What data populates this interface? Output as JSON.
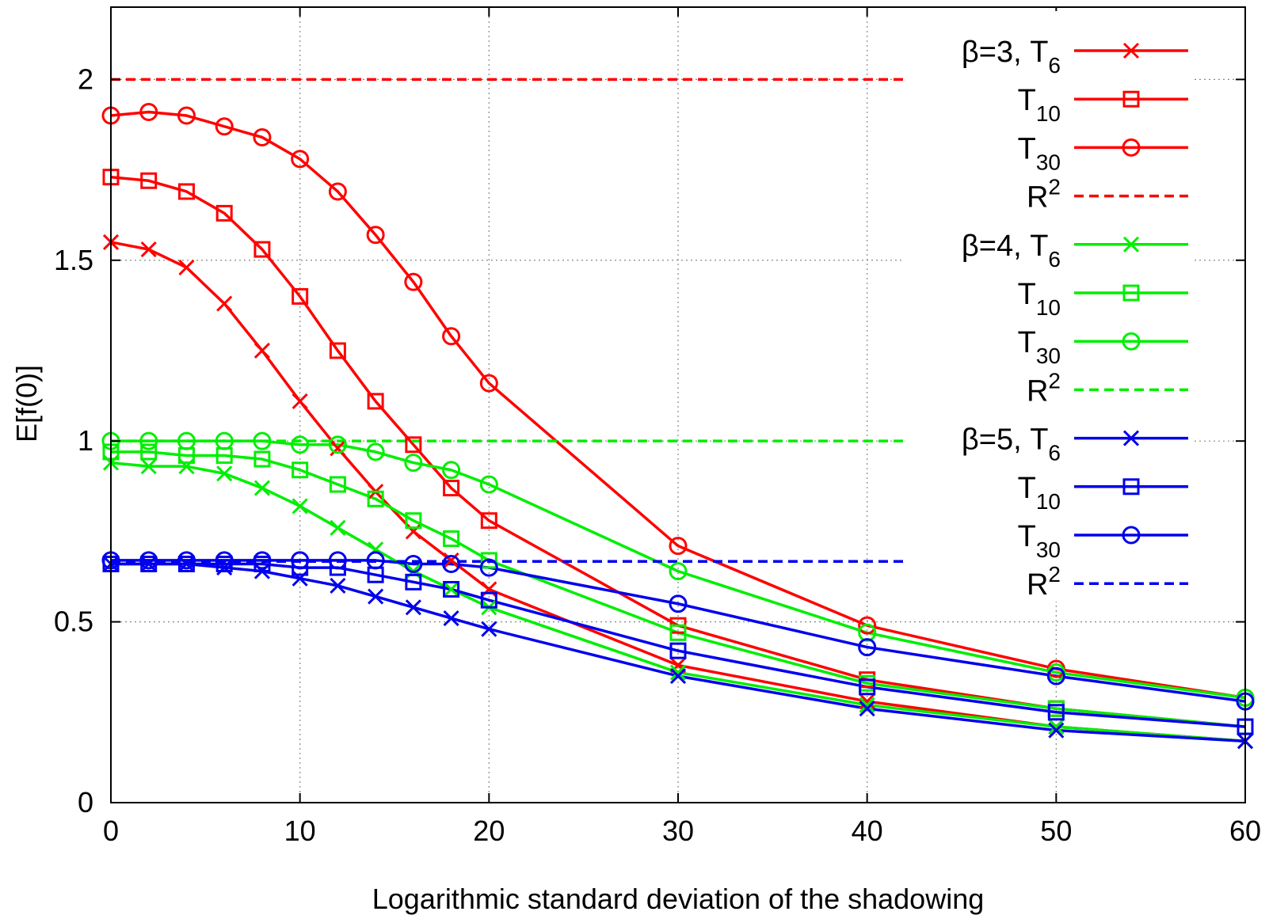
{
  "chart_data": {
    "type": "line",
    "title": "",
    "xlabel": "Logarithmic standard deviation of the shadowing",
    "ylabel": "E[f(0)]",
    "xlim": [
      0,
      60
    ],
    "ylim": [
      0,
      2.2
    ],
    "xticks": [
      "0",
      "10",
      "20",
      "30",
      "40",
      "50",
      "60"
    ],
    "yticks": [
      "0",
      "0.5",
      "1",
      "1.5",
      "2"
    ],
    "grid": "on (dotted)",
    "legend_position": "right",
    "x": [
      0,
      2,
      4,
      6,
      8,
      10,
      12,
      14,
      16,
      18,
      20,
      30,
      40,
      50,
      60
    ],
    "series": [
      {
        "label_main": "β=3, T",
        "label_sub": "6",
        "color": "#ff0000",
        "marker": "x",
        "style": "solid",
        "values": [
          1.55,
          1.53,
          1.48,
          1.38,
          1.25,
          1.11,
          0.98,
          0.86,
          0.75,
          0.67,
          0.59,
          0.38,
          0.28,
          0.21,
          0.17
        ]
      },
      {
        "label_main": "T",
        "label_sub": "10",
        "color": "#ff0000",
        "marker": "square",
        "style": "solid",
        "values": [
          1.73,
          1.72,
          1.69,
          1.63,
          1.53,
          1.4,
          1.25,
          1.11,
          0.99,
          0.87,
          0.78,
          0.49,
          0.34,
          0.26,
          0.21
        ]
      },
      {
        "label_main": "T",
        "label_sub": "30",
        "color": "#ff0000",
        "marker": "circle",
        "style": "solid",
        "values": [
          1.9,
          1.91,
          1.9,
          1.87,
          1.84,
          1.78,
          1.69,
          1.57,
          1.44,
          1.29,
          1.16,
          0.71,
          0.49,
          0.37,
          0.29
        ]
      },
      {
        "label_main": "R",
        "label_sup": "2",
        "color": "#ff0000",
        "marker": "none",
        "style": "dashed",
        "x_range": [
          0,
          42
        ],
        "constant": 2.0
      },
      {
        "label_main": "β=4, T",
        "label_sub": "6",
        "color": "#00ee00",
        "marker": "x",
        "style": "solid",
        "values": [
          0.94,
          0.93,
          0.93,
          0.91,
          0.87,
          0.82,
          0.76,
          0.7,
          0.64,
          0.59,
          0.54,
          0.36,
          0.27,
          0.21,
          0.17
        ]
      },
      {
        "label_main": "T",
        "label_sub": "10",
        "color": "#00ee00",
        "marker": "square",
        "style": "solid",
        "values": [
          0.97,
          0.97,
          0.96,
          0.96,
          0.95,
          0.92,
          0.88,
          0.84,
          0.78,
          0.73,
          0.67,
          0.47,
          0.33,
          0.26,
          0.21
        ]
      },
      {
        "label_main": "T",
        "label_sub": "30",
        "color": "#00ee00",
        "marker": "circle",
        "style": "solid",
        "values": [
          1.0,
          1.0,
          1.0,
          1.0,
          1.0,
          0.99,
          0.99,
          0.97,
          0.94,
          0.92,
          0.88,
          0.64,
          0.47,
          0.36,
          0.29
        ]
      },
      {
        "label_main": "R",
        "label_sup": "2",
        "color": "#00ee00",
        "marker": "none",
        "style": "dashed",
        "x_range": [
          0,
          42
        ],
        "constant": 1.0
      },
      {
        "label_main": "β=5, T",
        "label_sub": "6",
        "color": "#0000ee",
        "marker": "x",
        "style": "solid",
        "values": [
          0.66,
          0.66,
          0.66,
          0.65,
          0.64,
          0.62,
          0.6,
          0.57,
          0.54,
          0.51,
          0.48,
          0.35,
          0.26,
          0.2,
          0.17
        ]
      },
      {
        "label_main": "T",
        "label_sub": "10",
        "color": "#0000ee",
        "marker": "square",
        "style": "solid",
        "values": [
          0.66,
          0.66,
          0.66,
          0.66,
          0.66,
          0.65,
          0.65,
          0.63,
          0.61,
          0.59,
          0.56,
          0.42,
          0.32,
          0.25,
          0.21
        ]
      },
      {
        "label_main": "T",
        "label_sub": "30",
        "color": "#0000ee",
        "marker": "circle",
        "style": "solid",
        "values": [
          0.67,
          0.67,
          0.67,
          0.67,
          0.67,
          0.67,
          0.67,
          0.67,
          0.66,
          0.66,
          0.65,
          0.55,
          0.43,
          0.35,
          0.28
        ]
      },
      {
        "label_main": "R",
        "label_sup": "2",
        "color": "#0000ee",
        "marker": "none",
        "style": "dashed",
        "x_range": [
          0,
          42
        ],
        "constant": 0.667
      }
    ]
  }
}
